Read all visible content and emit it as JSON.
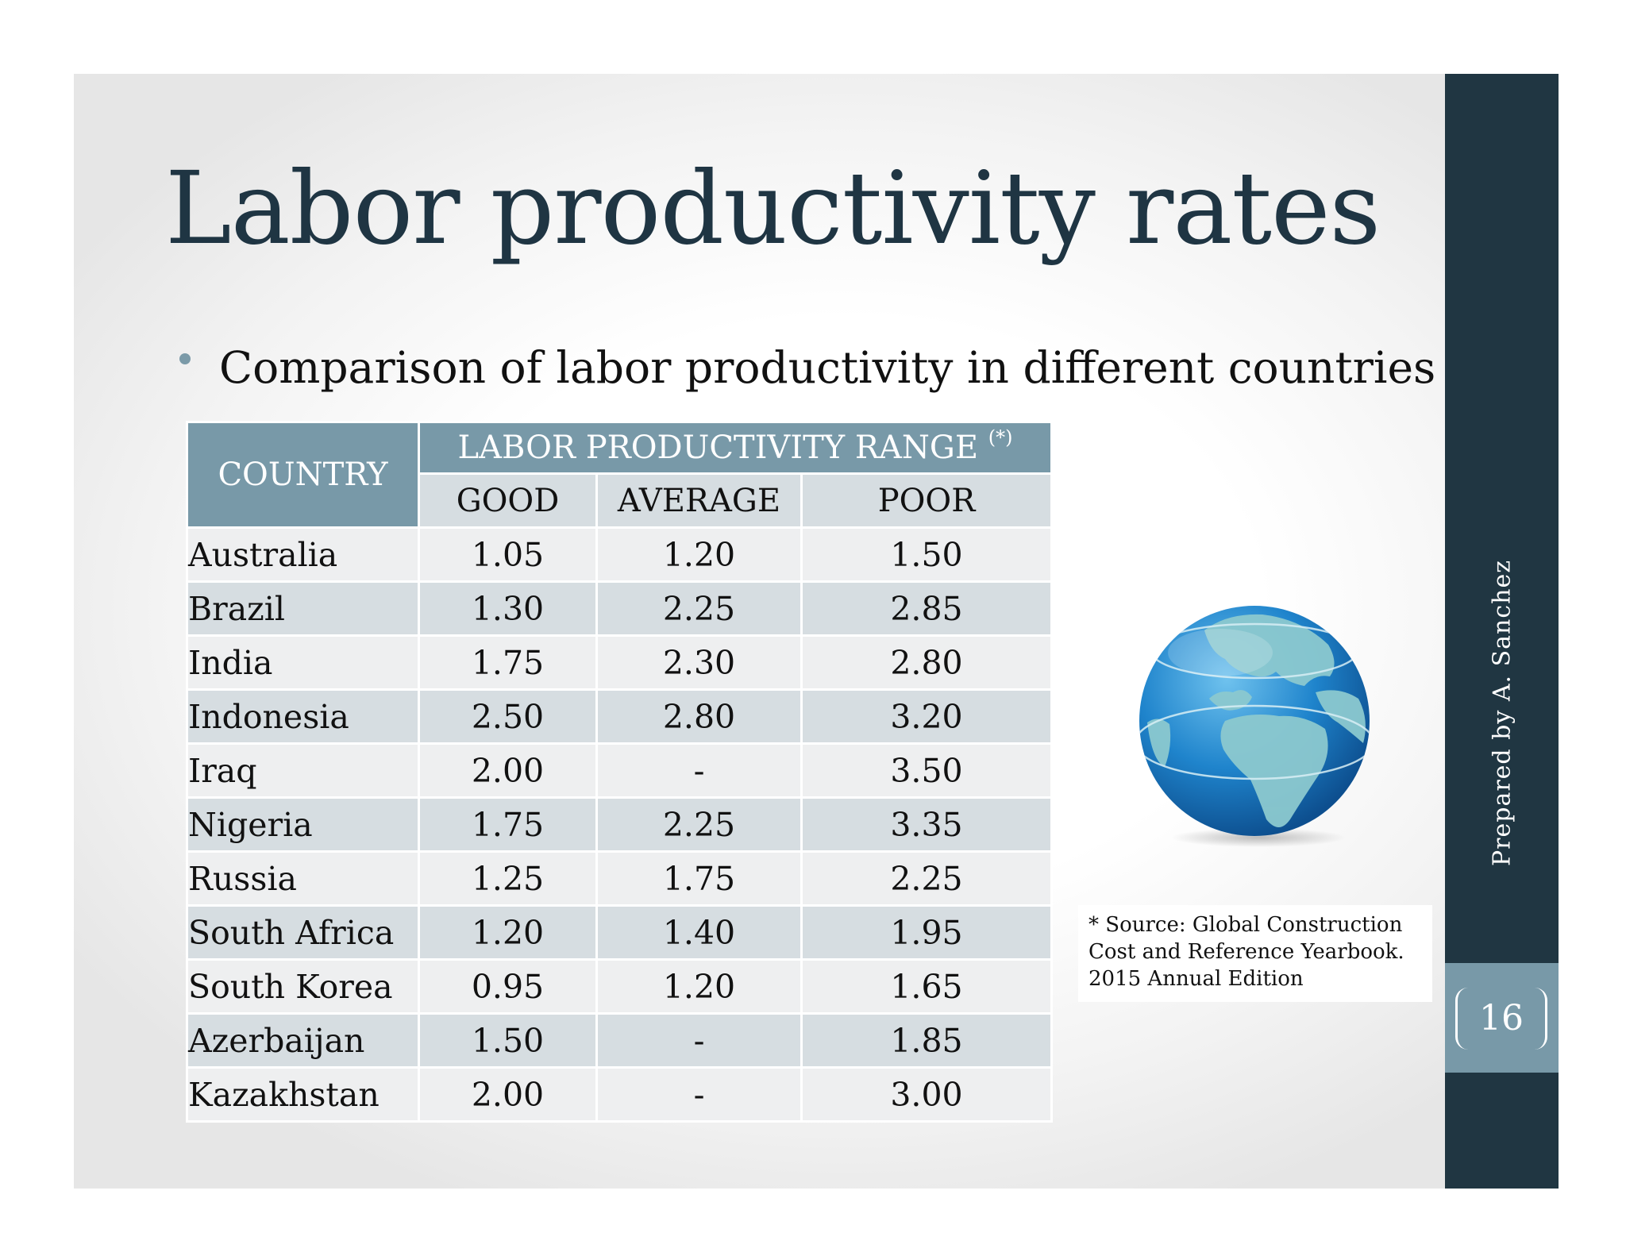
{
  "slide": {
    "title": "Labor productivity rates",
    "bullet": "Comparison of labor productivity in different countries",
    "page_number": "16",
    "side_label": "Prepared by A. Sanchez"
  },
  "table": {
    "country_header": "COUNTRY",
    "range_header": "LABOR PRODUCTIVITY RANGE",
    "range_marker": "(*)",
    "sub_headers": [
      "GOOD",
      "AVERAGE",
      "POOR"
    ],
    "rows": [
      {
        "country": "Australia",
        "good": "1.05",
        "average": "1.20",
        "poor": "1.50"
      },
      {
        "country": "Brazil",
        "good": "1.30",
        "average": "2.25",
        "poor": "2.85"
      },
      {
        "country": "India",
        "good": "1.75",
        "average": "2.30",
        "poor": "2.80"
      },
      {
        "country": "Indonesia",
        "good": "2.50",
        "average": "2.80",
        "poor": "3.20"
      },
      {
        "country": "Iraq",
        "good": "2.00",
        "average": "-",
        "poor": "3.50"
      },
      {
        "country": "Nigeria",
        "good": "1.75",
        "average": "2.25",
        "poor": "3.35"
      },
      {
        "country": "Russia",
        "good": "1.25",
        "average": "1.75",
        "poor": "2.25"
      },
      {
        "country": "South Africa",
        "good": "1.20",
        "average": "1.40",
        "poor": "1.95"
      },
      {
        "country": "South Korea",
        "good": "0.95",
        "average": "1.20",
        "poor": "1.65"
      },
      {
        "country": "Azerbaijan",
        "good": "1.50",
        "average": "-",
        "poor": "1.85"
      },
      {
        "country": "Kazakhstan",
        "good": "2.00",
        "average": "-",
        "poor": "3.00"
      }
    ]
  },
  "source_note": {
    "lines": [
      "* Source: Global Construction",
      "Cost and Reference Yearbook.",
      "2015 Annual Edition"
    ]
  },
  "image": {
    "icon": "globe-icon"
  },
  "colors": {
    "header_fill": "#7899a8",
    "sidebar": "#203642",
    "title_text": "#1f3543",
    "row_light": "#eeeff0",
    "row_dark": "#d6dde1"
  }
}
